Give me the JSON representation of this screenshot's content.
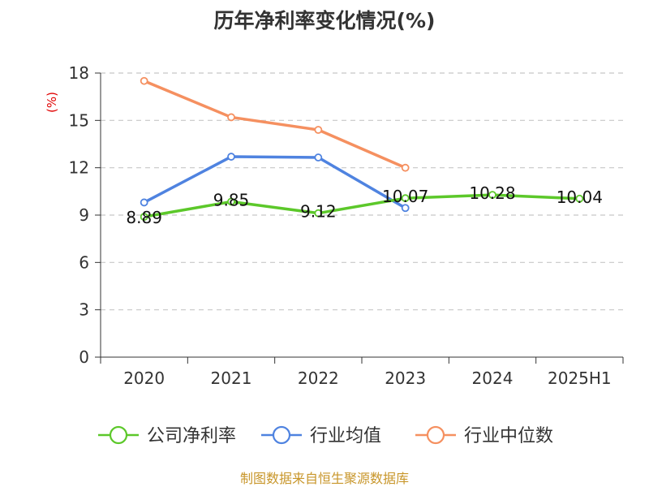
{
  "chart_data": {
    "type": "line",
    "title": "历年净利率变化情况(%)",
    "ylabel": "(%)",
    "xlabel": "",
    "categories": [
      "2020",
      "2021",
      "2022",
      "2023",
      "2024",
      "2025H1"
    ],
    "ylim": [
      0,
      18
    ],
    "yticks": [
      0,
      3,
      6,
      9,
      12,
      15,
      18
    ],
    "grid": true,
    "legend_position": "bottom",
    "series": [
      {
        "name": "公司净利率",
        "color": "#5cc82a",
        "values": [
          8.89,
          9.85,
          9.12,
          10.07,
          10.28,
          10.04
        ],
        "labels": [
          "8.89",
          "9.85",
          "9.12",
          "10.07",
          "10.28",
          "10.04"
        ]
      },
      {
        "name": "行业均值",
        "color": "#4f83e0",
        "values": [
          9.8,
          12.7,
          12.65,
          9.45,
          null,
          null
        ]
      },
      {
        "name": "行业中位数",
        "color": "#f59060",
        "values": [
          17.5,
          15.2,
          14.4,
          12.0,
          null,
          null
        ]
      }
    ]
  },
  "source": "制图数据来自恒生聚源数据库"
}
